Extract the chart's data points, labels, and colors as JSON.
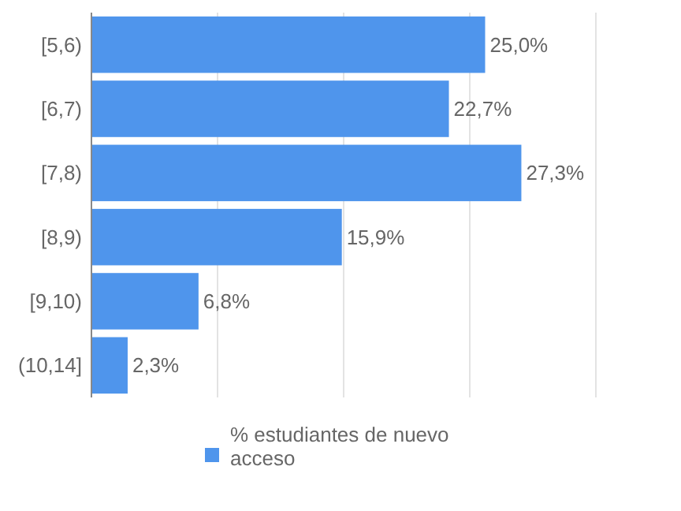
{
  "chart_data": {
    "type": "bar",
    "orientation": "horizontal",
    "categories": [
      "[5,6)",
      "[6,7)",
      "[7,8)",
      "[8,9)",
      "[9,10)",
      "(10,14]"
    ],
    "series": [
      {
        "name": "% estudiantes de nuevo acceso",
        "color": "#4f95ec",
        "values": [
          25.0,
          22.7,
          27.3,
          15.9,
          6.8,
          2.3
        ],
        "value_labels": [
          "25,0%",
          "22,7%",
          "27,3%",
          "15,9%",
          "6,8%",
          "2,3%"
        ]
      }
    ],
    "grid": "x",
    "legend": "bottom",
    "tick_labels": "y"
  }
}
